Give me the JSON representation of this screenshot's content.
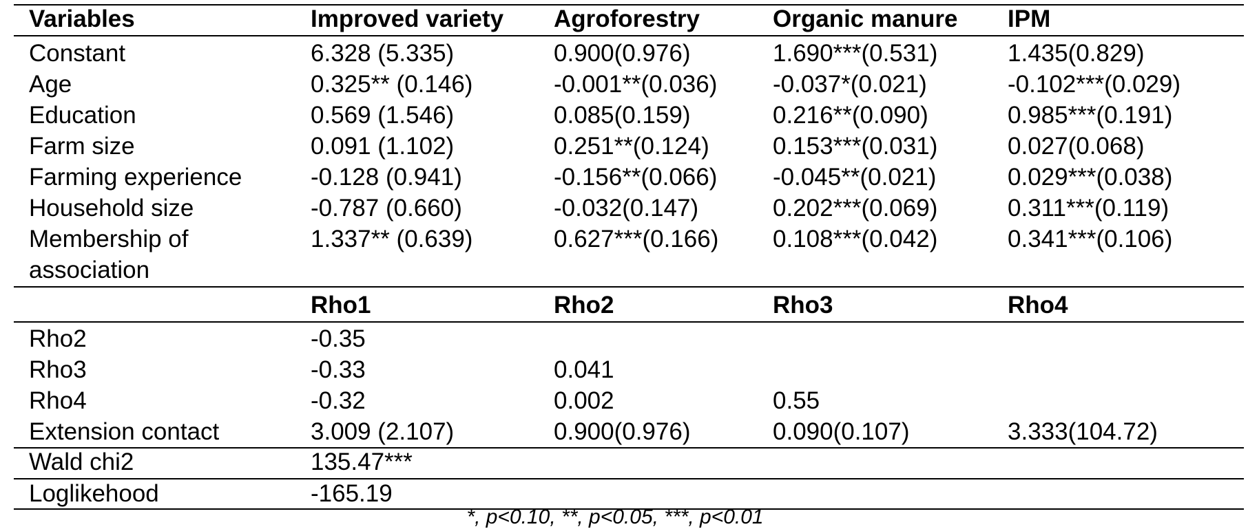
{
  "table": {
    "header": [
      "Variables",
      "Improved variety",
      "Agroforestry",
      "Organic manure",
      "IPM"
    ],
    "rows": [
      [
        "Constant",
        "6.328 (5.335)",
        "0.900(0.976)",
        "1.690***(0.531)",
        "1.435(0.829)"
      ],
      [
        "Age",
        "0.325** (0.146)",
        "-0.001**(0.036)",
        "-0.037*(0.021)",
        "-0.102***(0.029)"
      ],
      [
        "Education",
        "0.569 (1.546)",
        "0.085(0.159)",
        "0.216**(0.090)",
        "0.985***(0.191)"
      ],
      [
        "Farm size",
        "0.091 (1.102)",
        "0.251**(0.124)",
        "0.153***(0.031)",
        "0.027(0.068)"
      ],
      [
        "Farming experience",
        "-0.128 (0.941)",
        "-0.156**(0.066)",
        "-0.045**(0.021)",
        "0.029***(0.038)"
      ],
      [
        "Household size",
        "-0.787 (0.660)",
        "-0.032(0.147)",
        "0.202***(0.069)",
        "0.311***(0.119)"
      ],
      [
        "Membership of",
        "1.337** (0.639)",
        "0.627***(0.166)",
        "0.108***(0.042)",
        "0.341***(0.106)"
      ],
      [
        "association",
        "",
        "",
        "",
        ""
      ]
    ],
    "rho_header": [
      "",
      "Rho1",
      "Rho2",
      "Rho3",
      "Rho4"
    ],
    "rho_rows": [
      [
        "Rho2",
        "-0.35",
        "",
        "",
        ""
      ],
      [
        "Rho3",
        "-0.33",
        "0.041",
        "",
        ""
      ],
      [
        "Rho4",
        "-0.32",
        "0.002",
        "0.55",
        ""
      ],
      [
        "Extension contact",
        "3.009 (2.107)",
        "0.900(0.976)",
        "0.090(0.107)",
        "3.333(104.72)"
      ]
    ],
    "footer_rows": [
      [
        "Wald chi2",
        "135.47***",
        "",
        "",
        ""
      ],
      [
        "Loglikehood",
        "-165.19",
        "",
        "",
        ""
      ]
    ],
    "note": "*, p<0.10, **, p<0.05, ***, p<0.01"
  }
}
